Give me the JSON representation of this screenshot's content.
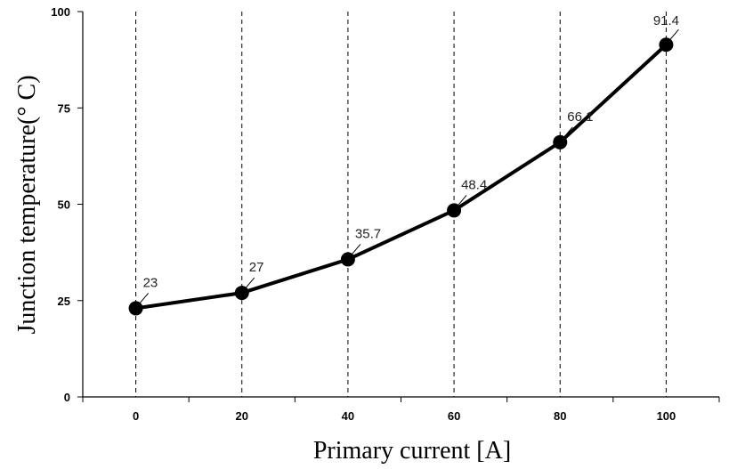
{
  "chart_data": {
    "type": "line",
    "xlabel": "Primary current [A]",
    "ylabel": "Junction temperature(° C)",
    "x": [
      0,
      20,
      40,
      60,
      80,
      100
    ],
    "x_tick_labels": [
      "0",
      "20",
      "40",
      "60",
      "80",
      "100"
    ],
    "y_tick_labels": [
      "0",
      "25",
      "50",
      "75",
      "100"
    ],
    "y_ticks": [
      0,
      25,
      50,
      75,
      100
    ],
    "series": [
      {
        "values": [
          23,
          27,
          35.7,
          48.4,
          66.1,
          91.4
        ],
        "data_labels": [
          "23",
          "27",
          "35.7",
          "48.4",
          "66.1",
          "91.4"
        ]
      }
    ],
    "xlim": [
      -10,
      110
    ],
    "ylim": [
      0,
      100
    ],
    "grid": "vertical dashed at x ticks",
    "line_color": "#000000",
    "marker": "filled circle"
  }
}
